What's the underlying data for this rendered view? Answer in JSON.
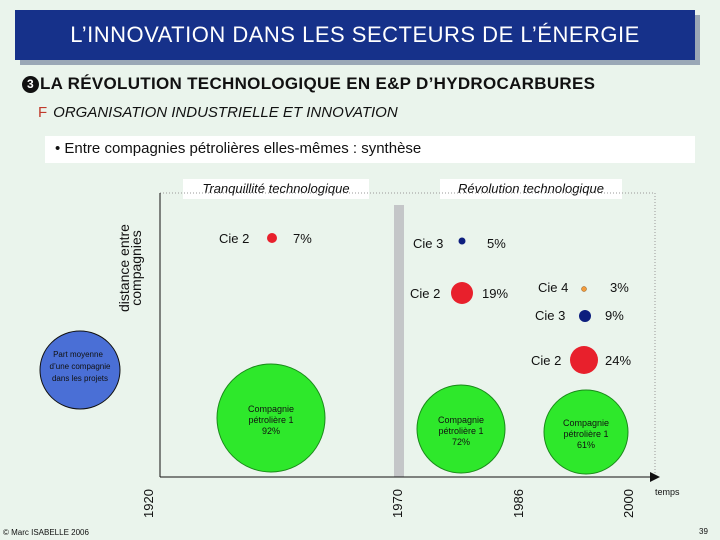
{
  "title": "L’INNOVATION DANS LES SECTEURS DE L’ÉNERGIE",
  "section": {
    "number": "3",
    "title": "LA RÉVOLUTION TECHNOLOGIQUE EN E&P D’HYDROCARBURES"
  },
  "subsection": {
    "bullet": "F",
    "title": "ORGANISATION INDUSTRIELLE ET INNOVATION"
  },
  "synthesis": "• Entre compagnies pétrolières elles-mêmes : synthèse",
  "headers": {
    "left": "Tranquillité technologique",
    "right": "Révolution technologique"
  },
  "axis": {
    "y_label_line1": "distance entre",
    "y_label_line2": "compagnies",
    "x_label": "temps"
  },
  "legend_bubble": {
    "line1": "Part moyenne",
    "line2": "d’une compagnie",
    "line3": "dans les projets"
  },
  "years": [
    "1920",
    "1970",
    "1986",
    "2000"
  ],
  "colors": {
    "title_bg": "#16318a",
    "red": "#e8202c",
    "navy": "#0d1e7e",
    "green": "#2ee82b",
    "orange": "#f39b3c",
    "legend_blue": "#4a6fd6",
    "gray_band": "#c4c6c8"
  },
  "chart_data": {
    "type": "bubble",
    "x_axis_label": "temps",
    "y_axis_label": "distance entre compagnies",
    "periods": [
      {
        "year": "1920",
        "companies": [
          {
            "name": "Cie 2",
            "share": "7%",
            "color": "red"
          },
          {
            "name": "Compagnie pétrolière 1",
            "share": "92%",
            "color": "green"
          }
        ]
      },
      {
        "year": "1986",
        "companies": [
          {
            "name": "Cie 3",
            "share": "5%",
            "color": "navy"
          },
          {
            "name": "Cie 2",
            "share": "19%",
            "color": "red"
          },
          {
            "name": "Compagnie pétrolière 1",
            "share": "72%",
            "color": "green"
          }
        ]
      },
      {
        "year": "2000",
        "companies": [
          {
            "name": "Cie 4",
            "share": "3%",
            "color": "orange"
          },
          {
            "name": "Cie 3",
            "share": "9%",
            "color": "navy"
          },
          {
            "name": "Cie 2",
            "share": "24%",
            "color": "red"
          },
          {
            "name": "Compagnie pétrolière 1",
            "share": "61%",
            "color": "green"
          }
        ]
      }
    ]
  },
  "labels": {
    "p1_cie2": "Cie 2",
    "p1_cie2_pct": "7%",
    "p1_cp1_l1": "Compagnie",
    "p1_cp1_l2": "pétrolière 1",
    "p1_cp1_pct": "92%",
    "p2_cie3": "Cie 3",
    "p2_cie3_pct": "5%",
    "p2_cie2": "Cie 2",
    "p2_cie2_pct": "19%",
    "p2_cp1_l1": "Compagnie",
    "p2_cp1_l2": "pétrolière 1",
    "p2_cp1_pct": "72%",
    "p3_cie4": "Cie 4",
    "p3_cie4_pct": "3%",
    "p3_cie3": "Cie 3",
    "p3_cie3_pct": "9%",
    "p3_cie2": "Cie 2",
    "p3_cie2_pct": "24%",
    "p3_cp1_l1": "Compagnie",
    "p3_cp1_l2": "pétrolière 1",
    "p3_cp1_pct": "61%"
  },
  "footer": {
    "copyright": "© Marc ISABELLE 2006",
    "page": "39"
  }
}
